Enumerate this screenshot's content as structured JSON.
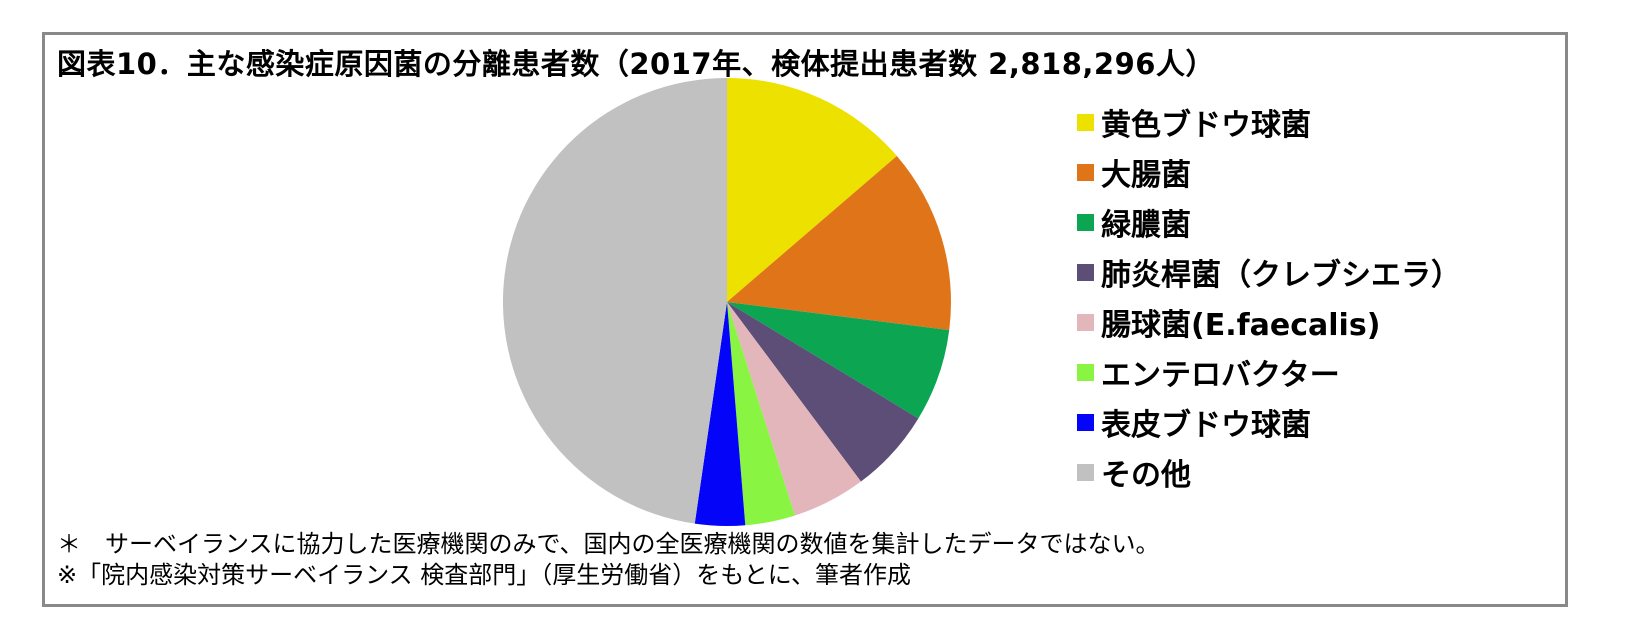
{
  "figure": {
    "title": "図表10．主な感染症原因菌の分離患者数（2017年、検体提出患者数 2,818,296人）",
    "footnotes": [
      "＊　サーベイランスに協力した医療機関のみで、国内の全医療機関の数値を集計したデータではない。",
      "※「院内感染対策サーベイランス 検査部門」（厚生労働省）をもとに、筆者作成"
    ],
    "border_color": "#898989",
    "background_color": "#ffffff"
  },
  "chart_data": {
    "type": "pie",
    "title": "図表10．主な感染症原因菌の分離患者数（2017年、検体提出患者数 2,818,296人）",
    "year": "2017年",
    "total_patients_label": "検体提出患者数 2,818,296人",
    "legend_position": "right",
    "start_angle_deg_from_top": 0,
    "direction": "clockwise",
    "values_are": "percent share, estimated from slice angles",
    "slices": [
      {
        "label": "黄色ブドウ球菌",
        "value": 13.7,
        "color": "#EDE100"
      },
      {
        "label": "大腸菌",
        "value": 13.3,
        "color": "#E07418"
      },
      {
        "label": "緑膿菌",
        "value": 6.7,
        "color": "#0CA653"
      },
      {
        "label": "肺炎桿菌（クレブシエラ）",
        "value": 6.1,
        "color": "#5D4E78"
      },
      {
        "label": "腸球菌(E.faecalis)",
        "value": 5.3,
        "color": "#E2B6BA"
      },
      {
        "label": "エンテロバクター",
        "value": 3.6,
        "color": "#89F442"
      },
      {
        "label": "表皮ブドウ球菌",
        "value": 3.6,
        "color": "#0404F8"
      },
      {
        "label": "その他",
        "value": 47.7,
        "color": "#C1C1C1"
      }
    ]
  }
}
